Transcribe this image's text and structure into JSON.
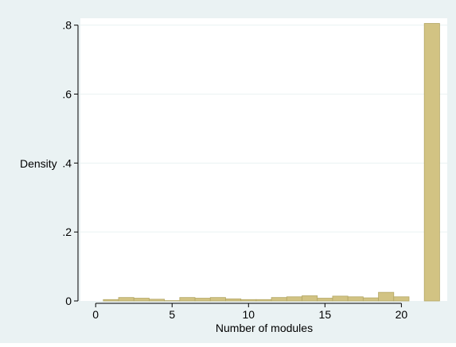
{
  "chart_data": {
    "type": "bar",
    "title": "",
    "xlabel": "Number of modules",
    "ylabel": "Density",
    "xlim": [
      -1,
      23
    ],
    "ylim": [
      0,
      0.82
    ],
    "x_ticks": [
      {
        "value": 0,
        "label": "0"
      },
      {
        "value": 5,
        "label": "5"
      },
      {
        "value": 10,
        "label": "10"
      },
      {
        "value": 15,
        "label": "15"
      },
      {
        "value": 20,
        "label": "20"
      }
    ],
    "y_ticks": [
      {
        "value": 0,
        "label": "0"
      },
      {
        "value": 0.2,
        "label": ".2"
      },
      {
        "value": 0.4,
        "label": ".4"
      },
      {
        "value": 0.6,
        "label": ".6"
      },
      {
        "value": 0.8,
        "label": ".8"
      }
    ],
    "grid": true,
    "bar_width": 1,
    "x": [
      1,
      2,
      3,
      4,
      5,
      6,
      7,
      8,
      9,
      10,
      11,
      12,
      13,
      14,
      15,
      16,
      17,
      18,
      19,
      20,
      21,
      22
    ],
    "values": [
      0.004,
      0.01,
      0.008,
      0.005,
      0.001,
      0.01,
      0.008,
      0.01,
      0.006,
      0.004,
      0.004,
      0.01,
      0.012,
      0.015,
      0.008,
      0.014,
      0.012,
      0.009,
      0.025,
      0.012,
      0.0,
      0.805
    ],
    "colors": {
      "bar_fill": "#d2c383",
      "bar_stroke": "#b4a764",
      "outer_background": "#eaf2f3",
      "plot_background": "#ffffff",
      "grid": "#eaf2f3",
      "axis": "#000000"
    }
  }
}
